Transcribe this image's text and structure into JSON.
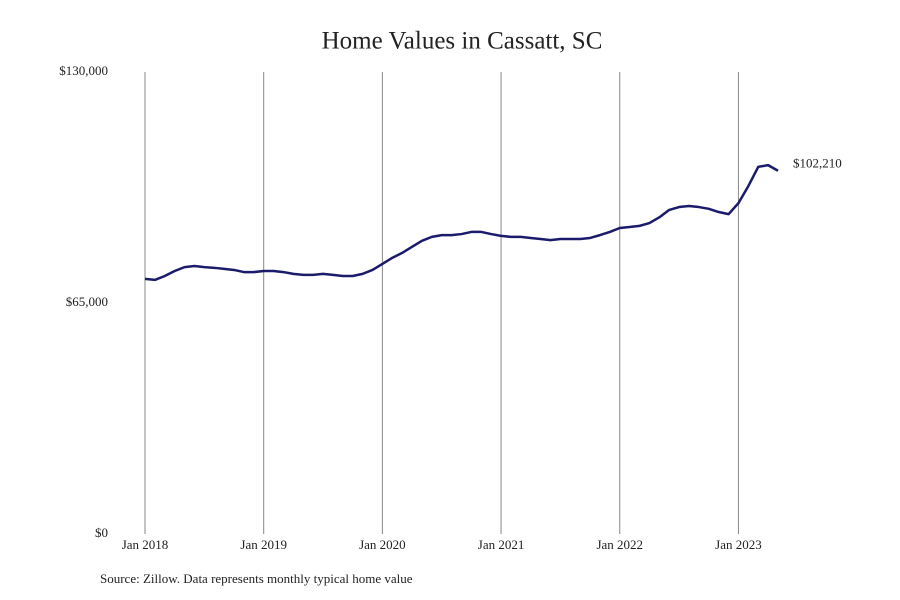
{
  "chart_data": {
    "type": "line",
    "title": "Home Values in Cassatt, SC",
    "source": "Source: Zillow. Data represents monthly typical home value",
    "x": [
      "2018-01",
      "2018-02",
      "2018-03",
      "2018-04",
      "2018-05",
      "2018-06",
      "2018-07",
      "2018-08",
      "2018-09",
      "2018-10",
      "2018-11",
      "2018-12",
      "2019-01",
      "2019-02",
      "2019-03",
      "2019-04",
      "2019-05",
      "2019-06",
      "2019-07",
      "2019-08",
      "2019-09",
      "2019-10",
      "2019-11",
      "2019-12",
      "2020-01",
      "2020-02",
      "2020-03",
      "2020-04",
      "2020-05",
      "2020-06",
      "2020-07",
      "2020-08",
      "2020-09",
      "2020-10",
      "2020-11",
      "2020-12",
      "2021-01",
      "2021-02",
      "2021-03",
      "2021-04",
      "2021-05",
      "2021-06",
      "2021-07",
      "2021-08",
      "2021-09",
      "2021-10",
      "2021-11",
      "2021-12",
      "2022-01",
      "2022-02",
      "2022-03",
      "2022-04",
      "2022-05",
      "2022-06",
      "2022-07",
      "2022-08",
      "2022-09",
      "2022-10",
      "2022-11",
      "2022-12",
      "2023-01",
      "2023-02",
      "2023-03",
      "2023-04",
      "2023-05"
    ],
    "series": [
      {
        "name": "Cassatt, SC",
        "color": "#1b1b6b",
        "values": [
          71800,
          71500,
          72600,
          74000,
          75100,
          75400,
          75100,
          74900,
          74600,
          74300,
          73700,
          73700,
          74000,
          74000,
          73700,
          73200,
          72900,
          72900,
          73200,
          72900,
          72600,
          72600,
          73200,
          74300,
          76000,
          77700,
          79100,
          80800,
          82500,
          83600,
          84100,
          84100,
          84400,
          85000,
          85000,
          84400,
          83900,
          83600,
          83600,
          83300,
          83000,
          82700,
          83000,
          83000,
          83000,
          83300,
          84100,
          85000,
          86100,
          86400,
          86700,
          87500,
          89100,
          91200,
          92000,
          92300,
          92000,
          91500,
          90600,
          90000,
          93100,
          97900,
          103300,
          103800,
          102210
        ],
        "value_labels": [
          null,
          null,
          null,
          null,
          null,
          null,
          null,
          null,
          null,
          null,
          null,
          null,
          null,
          null,
          null,
          null,
          null,
          null,
          null,
          null,
          null,
          null,
          null,
          null,
          null,
          null,
          null,
          null,
          null,
          null,
          null,
          null,
          null,
          null,
          null,
          null,
          null,
          null,
          null,
          null,
          null,
          null,
          null,
          null,
          null,
          null,
          null,
          null,
          null,
          null,
          null,
          null,
          null,
          null,
          null,
          null,
          null,
          null,
          null,
          null,
          null,
          null,
          null,
          null,
          "$102,210"
        ]
      }
    ],
    "xlim": [
      "2018-01",
      "2023-05"
    ],
    "xticks": [
      {
        "value": "2018-01",
        "label": "Jan 2018"
      },
      {
        "value": "2019-01",
        "label": "Jan 2019"
      },
      {
        "value": "2020-01",
        "label": "Jan 2020"
      },
      {
        "value": "2021-01",
        "label": "Jan 2021"
      },
      {
        "value": "2022-01",
        "label": "Jan 2022"
      },
      {
        "value": "2023-01",
        "label": "Jan 2023"
      }
    ],
    "ylim": [
      0,
      130000
    ],
    "yticks": [
      {
        "value": 0,
        "label": "$0"
      },
      {
        "value": 65000,
        "label": "$65,000"
      },
      {
        "value": 130000,
        "label": "$130,000"
      }
    ],
    "grid": "x"
  }
}
